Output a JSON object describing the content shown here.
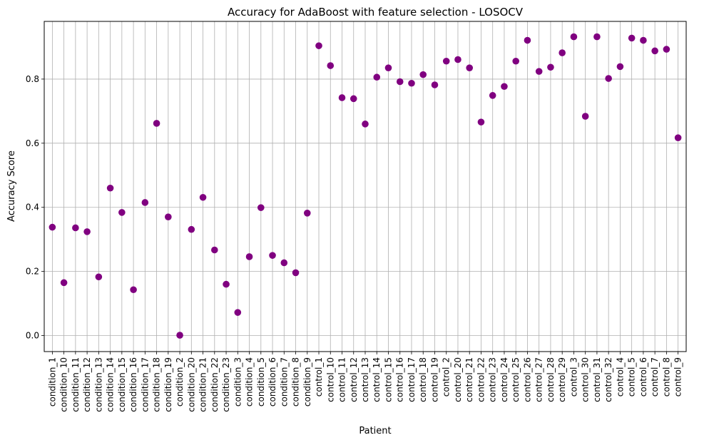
{
  "chart_data": {
    "type": "scatter",
    "title": "Accuracy for AdaBoost with feature selection - LOSOCV",
    "xlabel": "Patient",
    "ylabel": "Accuracy Score",
    "ylim": [
      -0.05,
      0.98
    ],
    "yticks": [
      0.0,
      0.2,
      0.4,
      0.6,
      0.8
    ],
    "ytick_labels": [
      "0.0",
      "0.2",
      "0.4",
      "0.6",
      "0.8"
    ],
    "grid": true,
    "marker_color": "#800080",
    "categories": [
      "condition_1",
      "condition_10",
      "condition_11",
      "condition_12",
      "condition_13",
      "condition_14",
      "condition_15",
      "condition_16",
      "condition_17",
      "condition_18",
      "condition_19",
      "condition_2",
      "condition_20",
      "condition_21",
      "condition_22",
      "condition_23",
      "condition_3",
      "condition_4",
      "condition_5",
      "condition_6",
      "condition_7",
      "condition_8",
      "condition_9",
      "control_1",
      "control_10",
      "control_11",
      "control_12",
      "control_13",
      "control_14",
      "control_15",
      "control_16",
      "control_17",
      "control_18",
      "control_19",
      "control_2",
      "control_20",
      "control_21",
      "control_22",
      "control_23",
      "control_24",
      "control_25",
      "control_26",
      "control_27",
      "control_28",
      "control_29",
      "control_3",
      "control_30",
      "control_31",
      "control_32",
      "control_4",
      "control_5",
      "control_6",
      "control_7",
      "control_8",
      "control_9"
    ],
    "values": [
      0.338,
      0.165,
      0.336,
      0.324,
      0.183,
      0.46,
      0.384,
      0.143,
      0.415,
      0.662,
      0.37,
      0.001,
      0.331,
      0.431,
      0.267,
      0.16,
      0.072,
      0.246,
      0.399,
      0.25,
      0.227,
      0.196,
      0.382,
      0.904,
      0.842,
      0.742,
      0.739,
      0.66,
      0.806,
      0.835,
      0.792,
      0.787,
      0.814,
      0.782,
      0.856,
      0.861,
      0.835,
      0.666,
      0.749,
      0.777,
      0.856,
      0.921,
      0.824,
      0.837,
      0.882,
      0.932,
      0.684,
      0.932,
      0.802,
      0.839,
      0.928,
      0.921,
      0.888,
      0.893,
      0.617
    ]
  }
}
